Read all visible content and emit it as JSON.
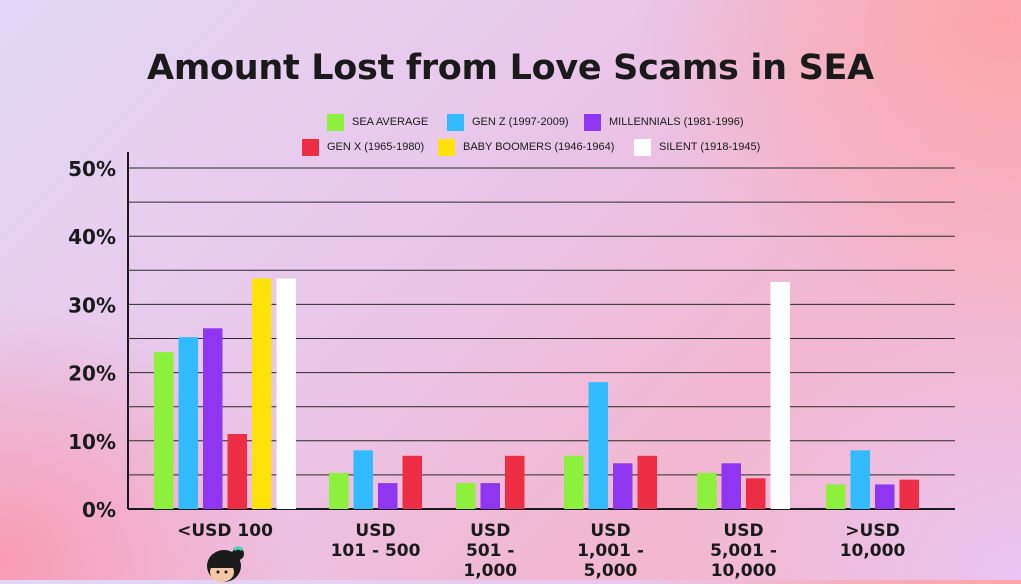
{
  "title": "Amount Lost from Love Scams in SEA",
  "legend": [
    {
      "label": "SEA AVERAGE",
      "color": "#8cf03c"
    },
    {
      "label": "GEN Z (1997-2009)",
      "color": "#32bcff"
    },
    {
      "label": "MILLENNIALS (1981-1996)",
      "color": "#8f36f0"
    },
    {
      "label": "GEN X (1965-1980)",
      "color": "#ee2e45"
    },
    {
      "label": "BABY BOOMERS (1946-1964)",
      "color": "#ffe20a"
    },
    {
      "label": "SILENT (1918-1945)",
      "color": "#ffffff"
    }
  ],
  "chart_data": {
    "type": "bar",
    "title": "Amount Lost from Love Scams in SEA",
    "xlabel": "",
    "ylabel": "",
    "ylim": [
      0,
      50
    ],
    "yticks": [
      "0%",
      "10%",
      "20%",
      "30%",
      "40%",
      "50%"
    ],
    "grid": true,
    "legend_position": "top",
    "categories": [
      "<USD 100",
      "USD\n101 - 500",
      "USD\n501 -\n1,000",
      "USD\n1,001 -\n5,000",
      "USD\n5,001 -\n10,000",
      ">USD\n10,000"
    ],
    "series": [
      {
        "name": "SEA AVERAGE",
        "color": "#8cf03c",
        "values": [
          23,
          5.3,
          3.8,
          7.8,
          5.3,
          3.6
        ]
      },
      {
        "name": "GEN Z (1997-2009)",
        "color": "#32bcff",
        "values": [
          25.2,
          8.6,
          null,
          18.6,
          null,
          8.6
        ]
      },
      {
        "name": "MILLENNIALS (1981-1996)",
        "color": "#8f36f0",
        "values": [
          26.5,
          3.8,
          3.8,
          6.7,
          6.7,
          3.6
        ]
      },
      {
        "name": "GEN X (1965-1980)",
        "color": "#ee2e45",
        "values": [
          11,
          7.8,
          7.8,
          7.8,
          4.5,
          4.3
        ]
      },
      {
        "name": "BABY BOOMERS (1946-1964)",
        "color": "#ffe20a",
        "values": [
          33.8,
          null,
          null,
          null,
          null,
          null
        ]
      },
      {
        "name": "SILENT (1918-1945)",
        "color": "#ffffff",
        "values": [
          33.8,
          null,
          null,
          null,
          33.3,
          null
        ]
      }
    ]
  }
}
